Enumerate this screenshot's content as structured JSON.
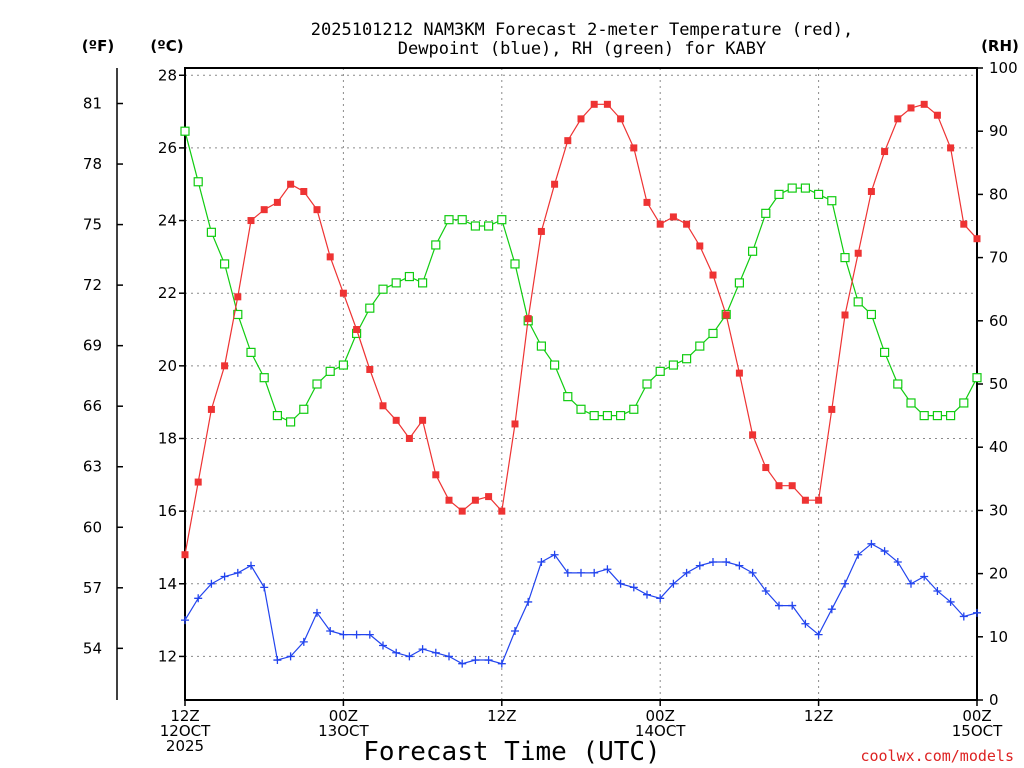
{
  "chart_data": {
    "type": "line",
    "title_line1": "2025101212 NAM3KM Forecast 2-meter Temperature (red),",
    "title_line2": "Dewpoint (blue), RH (green) for KABY",
    "unit_f": "(ºF)",
    "unit_c": "(ºC)",
    "unit_rh": "(RH)",
    "xlabel": "Forecast Time (UTC)",
    "credit": "coolwx.com/models",
    "ylim_c": [
      10.8,
      28.2
    ],
    "ylim_rh": [
      0,
      100
    ],
    "x_range_hours": [
      0,
      60
    ],
    "c_ticks": [
      "28",
      "26",
      "24",
      "22",
      "20",
      "18",
      "16",
      "14",
      "12"
    ],
    "f_ticks": [
      "81",
      "78",
      "75",
      "72",
      "69",
      "66",
      "63",
      "60",
      "57",
      "54"
    ],
    "rh_ticks": [
      "100",
      "90",
      "80",
      "70",
      "60",
      "50",
      "40",
      "30",
      "20",
      "10",
      "0"
    ],
    "x_ticks": [
      {
        "line1": "12Z",
        "line2": "12OCT",
        "line3": "2025"
      },
      {
        "line1": "00Z",
        "line2": "13OCT",
        "line3": ""
      },
      {
        "line1": "12Z",
        "line2": "",
        "line3": ""
      },
      {
        "line1": "00Z",
        "line2": "14OCT",
        "line3": ""
      },
      {
        "line1": "12Z",
        "line2": "",
        "line3": ""
      },
      {
        "line1": "00Z",
        "line2": "15OCT",
        "line3": ""
      }
    ],
    "x_hours": [
      0,
      1,
      2,
      3,
      4,
      5,
      6,
      7,
      8,
      9,
      10,
      11,
      12,
      13,
      14,
      15,
      16,
      17,
      18,
      19,
      20,
      21,
      22,
      23,
      24,
      25,
      26,
      27,
      28,
      29,
      30,
      31,
      32,
      33,
      34,
      35,
      36,
      37,
      38,
      39,
      40,
      41,
      42,
      43,
      44,
      45,
      46,
      47,
      48,
      49,
      50,
      51,
      52,
      53,
      54,
      55,
      56,
      57,
      58,
      59,
      60
    ],
    "series": [
      {
        "name": "2-meter Temperature",
        "unit": "C",
        "color": "#ee3333",
        "marker": "filled-square",
        "values": [
          14.8,
          16.8,
          18.8,
          20.0,
          21.9,
          24.0,
          24.3,
          24.5,
          25.0,
          24.8,
          24.3,
          23.0,
          22.0,
          21.0,
          19.9,
          18.9,
          18.5,
          18.0,
          18.5,
          17.0,
          16.3,
          16.0,
          16.3,
          16.4,
          16.0,
          18.4,
          21.3,
          23.7,
          25.0,
          26.2,
          26.8,
          27.2,
          27.2,
          26.8,
          26.0,
          24.5,
          23.9,
          24.1,
          23.9,
          23.3,
          22.5,
          21.4,
          19.8,
          18.1,
          17.2,
          16.7,
          16.7,
          16.3,
          16.3,
          18.8,
          21.4,
          23.1,
          24.8,
          25.9,
          26.8,
          27.1,
          27.2,
          26.9,
          26.0,
          23.9,
          23.5
        ]
      },
      {
        "name": "Dewpoint",
        "unit": "C",
        "color": "#2244ee",
        "marker": "plus",
        "values": [
          13.0,
          13.6,
          14.0,
          14.2,
          14.3,
          14.5,
          13.9,
          11.9,
          12.0,
          12.4,
          13.2,
          12.7,
          12.6,
          12.6,
          12.6,
          12.3,
          12.1,
          12.0,
          12.2,
          12.1,
          12.0,
          11.8,
          11.9,
          11.9,
          11.8,
          12.7,
          13.5,
          14.6,
          14.8,
          14.3,
          14.3,
          14.3,
          14.4,
          14.0,
          13.9,
          13.7,
          13.6,
          14.0,
          14.3,
          14.5,
          14.6,
          14.6,
          14.5,
          14.3,
          13.8,
          13.4,
          13.4,
          12.9,
          12.6,
          13.3,
          14.0,
          14.8,
          15.1,
          14.9,
          14.6,
          14.0,
          14.2,
          13.8,
          13.5,
          13.1,
          13.2
        ]
      },
      {
        "name": "RH",
        "unit": "%",
        "color": "#11cc11",
        "marker": "open-square",
        "values": [
          90,
          82,
          74,
          69,
          61,
          55,
          51,
          45,
          44,
          46,
          50,
          52,
          53,
          58,
          62,
          65,
          66,
          67,
          66,
          72,
          76,
          76,
          75,
          75,
          76,
          69,
          60,
          56,
          53,
          48,
          46,
          45,
          45,
          45,
          46,
          50,
          52,
          53,
          54,
          56,
          58,
          61,
          66,
          71,
          77,
          80,
          81,
          81,
          80,
          79,
          70,
          63,
          61,
          55,
          50,
          47,
          45,
          45,
          45,
          47,
          51
        ]
      }
    ]
  }
}
